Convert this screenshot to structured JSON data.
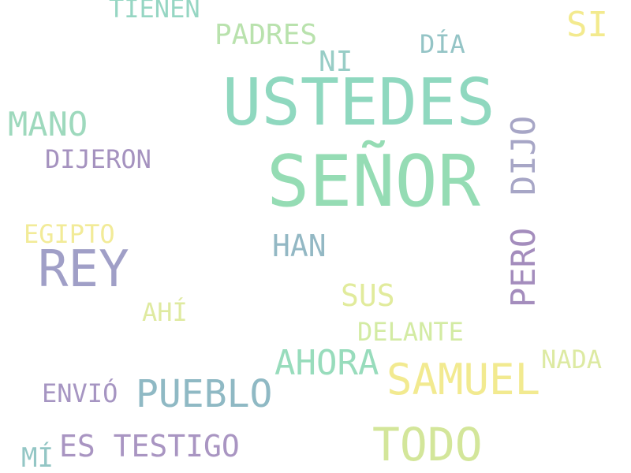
{
  "words": [
    {
      "text": "SEÑOR",
      "color": "#95dcb4"
    },
    {
      "text": "USTEDES",
      "color": "#8fd8bf"
    },
    {
      "text": "REY",
      "color": "#a09fc7"
    },
    {
      "text": "TODO",
      "color": "#d3e69a"
    },
    {
      "text": "SAMUEL",
      "color": "#f2ea90"
    },
    {
      "text": "PUEBLO",
      "color": "#8fb9c4"
    },
    {
      "text": "AHORA",
      "color": "#98dcbc"
    },
    {
      "text": "MANO",
      "color": "#9ed9bd"
    },
    {
      "text": "SI",
      "color": "#f3ea8e"
    },
    {
      "text": "PADRES",
      "color": "#b9e2ad"
    },
    {
      "text": "TIENEN",
      "color": "#96d6c3"
    },
    {
      "text": "DÍA",
      "color": "#94c4c6"
    },
    {
      "text": "NI",
      "color": "#98cdc6"
    },
    {
      "text": "DIJERON",
      "color": "#a592bf"
    },
    {
      "text": "DIJO",
      "color": "#a7a6c6"
    },
    {
      "text": "EGIPTO",
      "color": "#f2eb98"
    },
    {
      "text": "HAN",
      "color": "#93b8c4"
    },
    {
      "text": "PERO",
      "color": "#a48dbd"
    },
    {
      "text": "SUS",
      "color": "#e1eb9c"
    },
    {
      "text": "AHÍ",
      "color": "#dfeaa0"
    },
    {
      "text": "DELANTE",
      "color": "#d3eba3"
    },
    {
      "text": "NADA",
      "color": "#ddeaa2"
    },
    {
      "text": "ENVIÓ",
      "color": "#a695c2"
    },
    {
      "text": "ES TESTIGO",
      "color": "#a995c2"
    },
    {
      "text": "MÍ",
      "color": "#93c6c5"
    }
  ]
}
